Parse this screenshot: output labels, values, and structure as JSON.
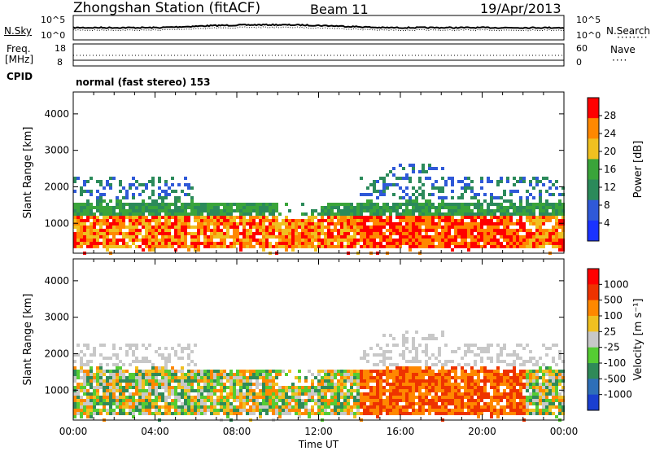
{
  "header": {
    "station": "Zhongshan Station (fitACF)",
    "beam": "Beam 11",
    "date": "19/Apr/2013"
  },
  "strips": {
    "sky": {
      "left_label": "N.Sky",
      "right_label": "N.Search",
      "left_ticks": [
        "10^5",
        "10^0"
      ],
      "right_ticks": [
        "10^5",
        "10^0"
      ]
    },
    "freq": {
      "left_label_1": "Freq.",
      "left_label_2": "[MHz]",
      "right_label": "Nave",
      "left_ticks": [
        "18",
        "8"
      ],
      "right_ticks": [
        "60",
        "0"
      ]
    },
    "cpid": {
      "label": "CPID",
      "text": "normal (fast stereo) 153"
    }
  },
  "chart_data": [
    {
      "type": "heatmap",
      "name": "power",
      "ylabel": "Slant Range [km]",
      "xlabel": "",
      "ylim": [
        180,
        4600
      ],
      "y_ticks": [
        "1000",
        "2000",
        "3000",
        "4000"
      ],
      "colorbar_label": "Power [dB]",
      "colorbar_ticks": [
        "4",
        "8",
        "12",
        "16",
        "20",
        "24",
        "28"
      ],
      "colorbar_colors": [
        "#1a33ff",
        "#2f59d8",
        "#2b8a5a",
        "#3aa43a",
        "#f0c020",
        "#ff8800",
        "#ff0000"
      ]
    },
    {
      "type": "heatmap",
      "name": "velocity",
      "ylabel": "Slant Range [km]",
      "xlabel": "Time UT",
      "ylim": [
        180,
        4600
      ],
      "y_ticks": [
        "1000",
        "2000",
        "3000",
        "4000"
      ],
      "x_ticks": [
        "00:00",
        "04:00",
        "08:00",
        "12:00",
        "16:00",
        "20:00",
        "00:00"
      ],
      "colorbar_label": "Velocity [m s⁻¹]",
      "colorbar_ticks": [
        "1000",
        "500",
        "100",
        "25",
        "-25",
        "-100",
        "-500",
        "-1000"
      ],
      "colorbar_colors": [
        "#1a3fd0",
        "#2e6fb8",
        "#2f8a58",
        "#55cc33",
        "#c8c8c8",
        "#f0c020",
        "#ff8800",
        "#ee3300",
        "#ff0000"
      ]
    }
  ]
}
